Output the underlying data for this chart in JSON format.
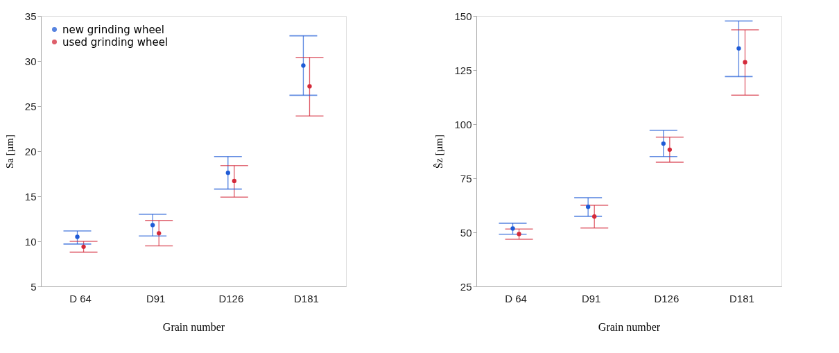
{
  "chart_data": [
    {
      "type": "scatter",
      "xlabel": "Grain number",
      "ylabel": "Sa [µm]",
      "categories": [
        "D 64",
        "D91",
        "D126",
        "D181"
      ],
      "ylim": [
        5,
        35
      ],
      "yticks": [
        5,
        10,
        15,
        20,
        25,
        30,
        35
      ],
      "grid": false,
      "legend": "top left",
      "marker": "circle",
      "series": [
        {
          "name": "new grinding wheel",
          "color": "#1f5bd6",
          "values": [
            10.5,
            11.8,
            17.6,
            29.5
          ],
          "errors": [
            [
              9.7,
              11.15
            ],
            [
              10.6,
              13.0
            ],
            [
              15.8,
              19.4
            ],
            [
              26.2,
              32.8
            ]
          ]
        },
        {
          "name": "used grinding wheel",
          "color": "#d42a3a",
          "values": [
            9.4,
            10.9,
            16.7,
            27.2
          ],
          "errors": [
            [
              8.8,
              10.0
            ],
            [
              9.5,
              12.3
            ],
            [
              14.9,
              18.4
            ],
            [
              23.9,
              30.4
            ]
          ]
        }
      ]
    },
    {
      "type": "scatter",
      "xlabel": "Grain number",
      "ylabel": "Ŝz [µm]",
      "categories": [
        "D 64",
        "D91",
        "D126",
        "D181"
      ],
      "ylim": [
        25,
        150
      ],
      "yticks": [
        25,
        50,
        75,
        100,
        125,
        150
      ],
      "grid": false,
      "legend": "top left",
      "marker": "circle",
      "series": [
        {
          "name": "new grinding wheel",
          "color": "#1f5bd6",
          "values": [
            51.8,
            61.8,
            91,
            135
          ],
          "errors": [
            [
              49.1,
              54.2
            ],
            [
              57.4,
              66.0
            ],
            [
              85.0,
              97.1
            ],
            [
              122,
              147.7
            ]
          ]
        },
        {
          "name": "used grinding wheel",
          "color": "#d42a3a",
          "values": [
            49.2,
            57.3,
            88.2,
            128.6
          ],
          "errors": [
            [
              46.8,
              51.5
            ],
            [
              52.0,
              62.5
            ],
            [
              82.4,
              94
            ],
            [
              113.4,
              143.6
            ]
          ]
        }
      ]
    }
  ]
}
